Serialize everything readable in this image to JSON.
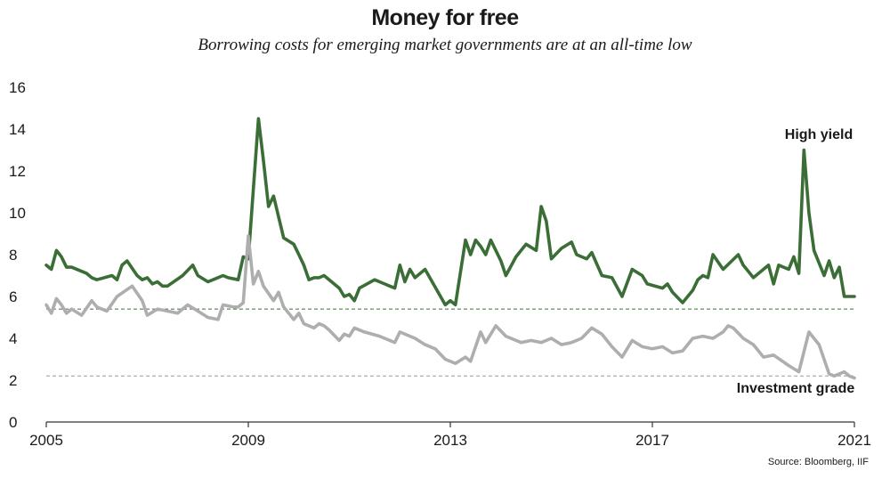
{
  "title": "Money for free",
  "subtitle": "Borrowing costs for emerging market governments are at an all-time low",
  "source": "Source: Bloomberg, IIF",
  "colors": {
    "high_yield": "#3b6e36",
    "investment_grade": "#aeaeae",
    "axis": "#333333",
    "ref_green": "#3b6e36",
    "ref_grey": "#9a9a9a"
  },
  "chart_data": {
    "type": "line",
    "title": "Money for free",
    "subtitle": "Borrowing costs for emerging market governments are at an all-time low",
    "xlim": [
      2005,
      2021
    ],
    "ylim": [
      0,
      16
    ],
    "x_ticks": [
      "2005",
      "2009",
      "2013",
      "2017",
      "2021"
    ],
    "y_ticks": [
      "0",
      "2",
      "4",
      "6",
      "8",
      "10",
      "12",
      "14",
      "16"
    ],
    "reference_lines": [
      5.4,
      2.2
    ],
    "grid": false,
    "series": [
      {
        "name": "High yield",
        "x": [
          2005.0,
          2005.1,
          2005.2,
          2005.3,
          2005.4,
          2005.5,
          2005.8,
          2005.9,
          2006.0,
          2006.3,
          2006.4,
          2006.5,
          2006.6,
          2006.8,
          2006.9,
          2007.0,
          2007.1,
          2007.2,
          2007.3,
          2007.4,
          2007.7,
          2007.9,
          2008.0,
          2008.2,
          2008.3,
          2008.5,
          2008.6,
          2008.8,
          2008.9,
          2009.0,
          2009.2,
          2009.3,
          2009.4,
          2009.5,
          2009.7,
          2009.9,
          2010.0,
          2010.1,
          2010.2,
          2010.3,
          2010.4,
          2010.5,
          2010.6,
          2010.8,
          2010.9,
          2011.0,
          2011.1,
          2011.2,
          2011.5,
          2011.7,
          2011.8,
          2011.9,
          2012.0,
          2012.1,
          2012.2,
          2012.3,
          2012.5,
          2012.9,
          2013.0,
          2013.1,
          2013.3,
          2013.4,
          2013.5,
          2013.6,
          2013.7,
          2013.8,
          2013.9,
          2014.0,
          2014.1,
          2014.3,
          2014.5,
          2014.7,
          2014.8,
          2014.9,
          2015.0,
          2015.2,
          2015.4,
          2015.5,
          2015.6,
          2015.7,
          2015.8,
          2016.0,
          2016.2,
          2016.4,
          2016.6,
          2016.8,
          2016.9,
          2017.2,
          2017.3,
          2017.4,
          2017.6,
          2017.8,
          2017.9,
          2018.0,
          2018.1,
          2018.2,
          2018.4,
          2018.7,
          2018.8,
          2019.0,
          2019.3,
          2019.4,
          2019.5,
          2019.7,
          2019.8,
          2019.9,
          2020.0,
          2020.1,
          2020.2,
          2020.4,
          2020.5,
          2020.6,
          2020.7,
          2020.8,
          2020.9,
          2021.0
        ],
        "values": [
          7.5,
          7.3,
          8.2,
          7.9,
          7.4,
          7.4,
          7.1,
          6.9,
          6.8,
          7.0,
          6.8,
          7.5,
          7.7,
          7.0,
          6.8,
          6.9,
          6.6,
          6.7,
          6.5,
          6.5,
          7.0,
          7.5,
          7.0,
          6.7,
          6.8,
          7.0,
          6.9,
          6.8,
          7.9,
          7.8,
          14.5,
          12.5,
          10.3,
          10.8,
          8.8,
          8.5,
          8.0,
          7.5,
          6.8,
          6.9,
          6.9,
          7.0,
          6.8,
          6.4,
          6.0,
          6.1,
          5.8,
          6.4,
          6.8,
          6.6,
          6.5,
          6.4,
          7.5,
          6.7,
          7.3,
          6.9,
          7.3,
          5.6,
          5.8,
          5.6,
          8.7,
          8.0,
          8.7,
          8.4,
          8.0,
          8.7,
          8.2,
          7.7,
          7.0,
          7.9,
          8.5,
          8.2,
          10.3,
          9.6,
          7.8,
          8.3,
          8.6,
          8.0,
          7.9,
          7.8,
          8.1,
          7.0,
          6.9,
          6.0,
          7.3,
          7.0,
          6.6,
          6.4,
          6.6,
          6.2,
          5.7,
          6.3,
          6.8,
          7.0,
          6.9,
          8.0,
          7.3,
          8.0,
          7.5,
          6.9,
          7.5,
          6.6,
          7.5,
          7.3,
          7.9,
          7.1,
          13.0,
          10.0,
          8.2,
          7.0,
          7.7,
          6.9,
          7.4,
          6.0,
          6.0,
          6.0
        ],
        "label": "High yield"
      },
      {
        "name": "Investment grade",
        "x": [
          2005.0,
          2005.1,
          2005.2,
          2005.3,
          2005.4,
          2005.5,
          2005.7,
          2005.9,
          2006.0,
          2006.2,
          2006.4,
          2006.7,
          2006.9,
          2007.0,
          2007.2,
          2007.4,
          2007.6,
          2007.8,
          2008.0,
          2008.2,
          2008.4,
          2008.5,
          2008.7,
          2008.8,
          2008.9,
          2009.0,
          2009.1,
          2009.2,
          2009.3,
          2009.5,
          2009.6,
          2009.7,
          2009.9,
          2010.0,
          2010.1,
          2010.3,
          2010.4,
          2010.5,
          2010.6,
          2010.8,
          2010.9,
          2011.0,
          2011.1,
          2011.3,
          2011.6,
          2011.9,
          2012.0,
          2012.3,
          2012.5,
          2012.7,
          2012.9,
          2013.1,
          2013.3,
          2013.4,
          2013.6,
          2013.7,
          2013.9,
          2014.1,
          2014.4,
          2014.6,
          2014.8,
          2015.0,
          2015.2,
          2015.4,
          2015.6,
          2015.8,
          2016.0,
          2016.2,
          2016.4,
          2016.6,
          2016.8,
          2017.0,
          2017.2,
          2017.4,
          2017.6,
          2017.8,
          2018.0,
          2018.2,
          2018.4,
          2018.5,
          2018.6,
          2018.8,
          2019.0,
          2019.2,
          2019.4,
          2019.7,
          2019.9,
          2020.1,
          2020.3,
          2020.5,
          2020.6,
          2020.8,
          2020.9,
          2021.0
        ],
        "values": [
          5.6,
          5.2,
          5.9,
          5.6,
          5.2,
          5.4,
          5.1,
          5.8,
          5.5,
          5.3,
          6.0,
          6.5,
          5.8,
          5.1,
          5.4,
          5.3,
          5.2,
          5.6,
          5.3,
          5.0,
          4.9,
          5.6,
          5.5,
          5.5,
          5.7,
          8.9,
          6.6,
          7.2,
          6.5,
          5.8,
          6.2,
          5.5,
          4.9,
          5.2,
          4.7,
          4.5,
          4.7,
          4.6,
          4.4,
          3.9,
          4.2,
          4.1,
          4.5,
          4.3,
          4.1,
          3.8,
          4.3,
          4.0,
          3.7,
          3.5,
          3.0,
          2.8,
          3.1,
          2.9,
          4.3,
          3.8,
          4.6,
          4.1,
          3.8,
          3.9,
          3.8,
          4.0,
          3.7,
          3.8,
          4.0,
          4.5,
          4.2,
          3.6,
          3.1,
          3.9,
          3.6,
          3.5,
          3.6,
          3.3,
          3.4,
          4.0,
          4.1,
          4.0,
          4.3,
          4.6,
          4.5,
          4.0,
          3.7,
          3.1,
          3.2,
          2.7,
          2.4,
          4.3,
          3.7,
          2.3,
          2.2,
          2.4,
          2.2,
          2.1
        ],
        "label": "Investment grade"
      }
    ]
  }
}
